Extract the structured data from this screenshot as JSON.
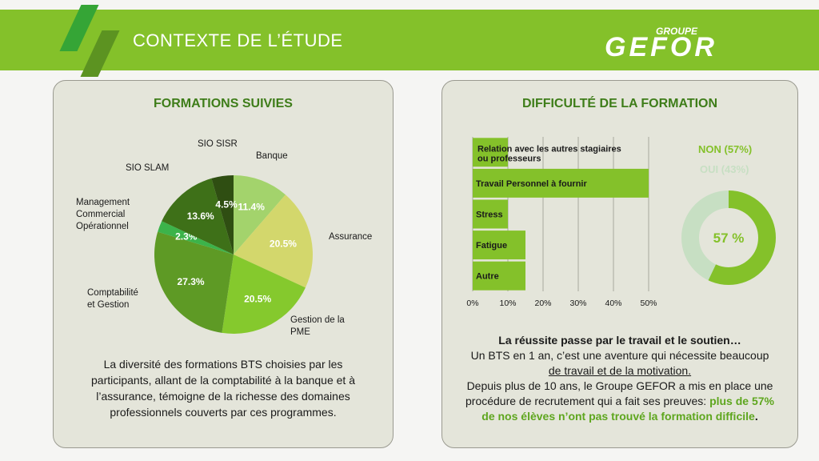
{
  "header": {
    "title": "CONTEXTE DE L’ÉTUDE",
    "logo_small": "GROUPE",
    "logo_big": "GEFOR"
  },
  "colors": {
    "accent": "#84c12a",
    "dark_green": "#3e7d19"
  },
  "left_panel": {
    "title": "FORMATIONS SUIVIES",
    "description": "La diversité des formations BTS choisies par les participants, allant de la comptabilité à la banque et à l’assurance, témoigne de la richesse des domaines professionnels couverts par ces programmes."
  },
  "right_panel": {
    "title": "DIFFICULTÉ DE LA FORMATION",
    "summary": {
      "lead": "La réussite passe par le travail et le soutien…",
      "line1": "Un BTS en 1 an, c’est une aventure qui nécessite beaucoup",
      "line2": "de travail et de la motivation.",
      "line3": "Depuis plus de 10 ans, le Groupe GEFOR  a mis en place une procédure de recrutement qui a fait ses preuves:",
      "highlight": "plus de 57% de nos élèves n’ont pas trouvé la formation difficile",
      "end": "."
    }
  },
  "chart_data": [
    {
      "type": "pie",
      "title": "FORMATIONS SUIVIES",
      "slices": [
        {
          "label": "Banque",
          "value": 11.4,
          "value_label": "11.4%",
          "color": "#a3d36c"
        },
        {
          "label": "Assurance",
          "value": 20.5,
          "value_label": "20.5%",
          "color": "#d3d76c"
        },
        {
          "label": "Gestion de la PME",
          "value": 20.5,
          "value_label": "20.5%",
          "color": "#85c92d"
        },
        {
          "label": "Comptabilité et Gestion",
          "value": 27.3,
          "value_label": "27.3%",
          "color": "#5e9a25"
        },
        {
          "label": "Management Commercial Opérationnel",
          "value": 2.3,
          "value_label": "2.3%",
          "color": "#3cb34a"
        },
        {
          "label": "SIO SLAM",
          "value": 13.6,
          "value_label": "13.6%",
          "color": "#3e7018"
        },
        {
          "label": "SIO SISR",
          "value": 4.5,
          "value_label": "4.5%",
          "color": "#2f4e12"
        }
      ]
    },
    {
      "type": "bar",
      "orientation": "horizontal",
      "categories": [
        "Relation avec les autres stagiaires ou professeurs",
        "Travail Personnel à fournir",
        "Stress",
        "Fatigue",
        "Autre"
      ],
      "values": [
        10,
        50,
        10,
        15,
        15
      ],
      "xlim": [
        0,
        50
      ],
      "ticks": [
        "0%",
        "10%",
        "20%",
        "30%",
        "40%",
        "50%"
      ],
      "bar_color": "#84c12a",
      "grid": true
    },
    {
      "type": "pie",
      "variant": "donut",
      "center_label": "57 %",
      "slices": [
        {
          "label": "NON (57%)",
          "value": 57,
          "color": "#84c12a"
        },
        {
          "label": "OUI (43%)",
          "value": 43,
          "color": "#c7dfc3"
        }
      ]
    }
  ]
}
